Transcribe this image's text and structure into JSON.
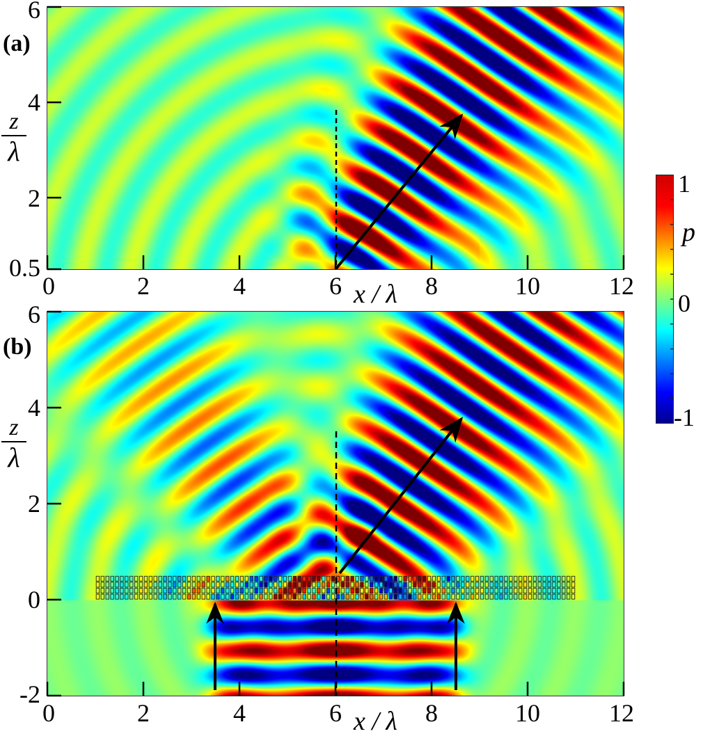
{
  "figure": {
    "panels": [
      {
        "id": "a",
        "label": "(a)",
        "xlabel": "x / λ",
        "ylabel_num": "z",
        "ylabel_den": "λ",
        "xticks": [
          "0",
          "2",
          "4",
          "6",
          "8",
          "10",
          "12"
        ],
        "yticks": [
          "6",
          "4",
          "2",
          "0.5"
        ],
        "xlim": [
          0,
          12
        ],
        "ylim": [
          0.5,
          6
        ],
        "annotations": [
          "dashed vertical line at x/λ = 6 from z/λ = 0.5 to ~3.8",
          "arrow from (6, 0.5) to (8.6, 3.7) indicating refracted wave direction"
        ]
      },
      {
        "id": "b",
        "label": "(b)",
        "xlabel": "x / λ",
        "ylabel_num": "z",
        "ylabel_den": "λ",
        "xticks": [
          "0",
          "2",
          "4",
          "6",
          "8",
          "10",
          "12"
        ],
        "yticks": [
          "6",
          "4",
          "2",
          "0",
          "-2"
        ],
        "xlim": [
          0,
          12
        ],
        "ylim": [
          -2,
          6
        ],
        "annotations": [
          "metasurface array of unit cells spanning x/λ = 1 to 11 at z/λ = 0 to 0.5",
          "upward arrows at x/λ = 3.5 and 8.5 indicating incident wave",
          "dashed vertical line at x/λ = 6 from z/λ = -2 to ~3.5",
          "arrow from (6, 0.6) to (8.6, 3.7) indicating transmitted wave direction"
        ]
      }
    ],
    "colorbar": {
      "title": "p",
      "ticks": [
        "1",
        "0",
        "-1"
      ],
      "range": [
        -1,
        1
      ],
      "colormap": "jet"
    }
  },
  "chart_data": [
    {
      "type": "heatmap",
      "title": "(a)",
      "xlabel": "x / λ",
      "ylabel": "z / λ",
      "xlim": [
        0,
        12
      ],
      "ylim": [
        0.5,
        6
      ],
      "xticks": [
        0,
        2,
        4,
        6,
        8,
        10,
        12
      ],
      "yticks": [
        0.5,
        2,
        4,
        6
      ],
      "colorbar": {
        "label": "p",
        "range": [
          -1,
          1
        ],
        "ticks": [
          -1,
          0,
          1
        ]
      },
      "description": "Pressure field of a refracted plane-wave beam radiating from the source region near x/λ≈4–8 at z/λ=0.5, propagating up and to the right at roughly 56° from horizontal, with weak circular side lobes to the left",
      "annotations": [
        {
          "type": "dashed_line",
          "x": [
            6,
            6
          ],
          "z": [
            0.5,
            3.8
          ]
        },
        {
          "type": "arrow",
          "from": [
            6,
            0.5
          ],
          "to": [
            8.6,
            3.7
          ]
        }
      ],
      "grid": false
    },
    {
      "type": "heatmap",
      "title": "(b)",
      "xlabel": "x / λ",
      "ylabel": "z / λ",
      "xlim": [
        0,
        12
      ],
      "ylim": [
        -2,
        6
      ],
      "xticks": [
        0,
        2,
        4,
        6,
        8,
        10,
        12
      ],
      "yticks": [
        -2,
        0,
        2,
        4,
        6
      ],
      "colorbar": {
        "label": "p",
        "range": [
          -1,
          1
        ],
        "ticks": [
          -1,
          0,
          1
        ]
      },
      "description": "Normally incident beam (x/λ≈3.5–8.5) from below passes through a metasurface (x/λ 1–11, z/λ 0–0.5) and is steered into an oblique transmitted beam up and to the right, with a weaker left-going lobe",
      "annotations": [
        {
          "type": "metasurface",
          "x": [
            1,
            11
          ],
          "z": [
            0,
            0.5
          ]
        },
        {
          "type": "arrow",
          "from": [
            3.5,
            -2
          ],
          "to": [
            3.5,
            -0.1
          ]
        },
        {
          "type": "arrow",
          "from": [
            8.5,
            -2
          ],
          "to": [
            8.5,
            -0.1
          ]
        },
        {
          "type": "dashed_line",
          "x": [
            6,
            6
          ],
          "z": [
            -2,
            3.5
          ]
        },
        {
          "type": "arrow",
          "from": [
            6,
            0.6
          ],
          "to": [
            8.6,
            3.7
          ]
        }
      ],
      "grid": false
    }
  ]
}
